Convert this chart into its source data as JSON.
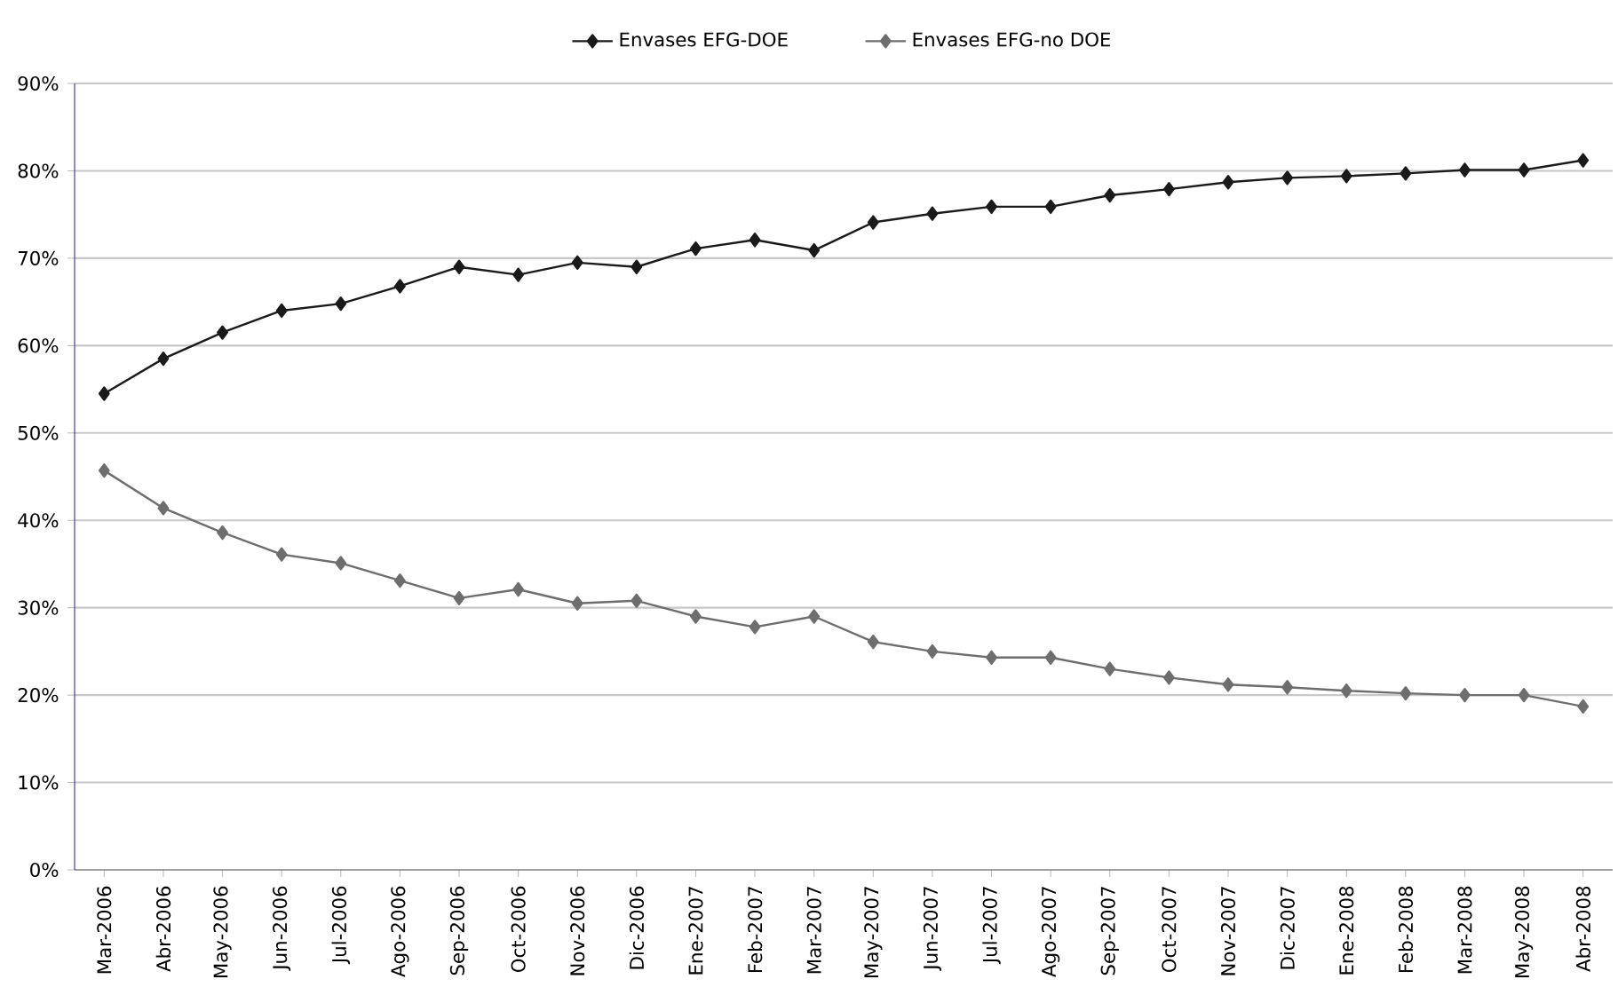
{
  "chart_data": {
    "type": "line",
    "categories": [
      "Mar-2006",
      "Abr-2006",
      "May-2006",
      "Jun-2006",
      "Jul-2006",
      "Ago-2006",
      "Sep-2006",
      "Oct-2006",
      "Nov-2006",
      "Dic-2006",
      "Ene-2007",
      "Feb-2007",
      "Mar-2007",
      "May-2007",
      "Jun-2007",
      "Jul-2007",
      "Ago-2007",
      "Sep-2007",
      "Oct-2007",
      "Nov-2007",
      "Dic-2007",
      "Ene-2008",
      "Feb-2008",
      "Mar-2008",
      "May-2008",
      "Abr-2008"
    ],
    "series": [
      {
        "name": "Envases EFG-DOE",
        "color": "#1a1a1a",
        "values": [
          54.5,
          58.5,
          61.5,
          64.0,
          64.8,
          66.8,
          69.0,
          68.1,
          69.5,
          69.0,
          71.1,
          72.1,
          70.9,
          74.1,
          75.1,
          75.9,
          75.9,
          77.2,
          77.9,
          78.7,
          79.2,
          79.4,
          79.7,
          80.1,
          80.1,
          81.2
        ]
      },
      {
        "name": "Envases EFG-no DOE",
        "color": "#6e6e6e",
        "values": [
          45.7,
          41.4,
          38.6,
          36.1,
          35.1,
          33.1,
          31.1,
          32.1,
          30.5,
          30.8,
          29.0,
          27.8,
          29.0,
          26.1,
          25.0,
          24.3,
          24.3,
          23.0,
          22.0,
          21.2,
          20.9,
          20.5,
          20.2,
          20.0,
          20.0,
          18.7
        ]
      }
    ],
    "ylim": [
      0,
      90
    ],
    "yticks": [
      {
        "value": 0,
        "label": "0%"
      },
      {
        "value": 10,
        "label": "10%"
      },
      {
        "value": 20,
        "label": "20%"
      },
      {
        "value": 30,
        "label": "30%"
      },
      {
        "value": 40,
        "label": "40%"
      },
      {
        "value": 50,
        "label": "50%"
      },
      {
        "value": 60,
        "label": "60%"
      },
      {
        "value": 70,
        "label": "70%"
      },
      {
        "value": 80,
        "label": "80%"
      },
      {
        "value": 90,
        "label": "90%"
      }
    ],
    "grid": "y",
    "legend": "top",
    "marker": "diamond",
    "line_style": "solid"
  }
}
